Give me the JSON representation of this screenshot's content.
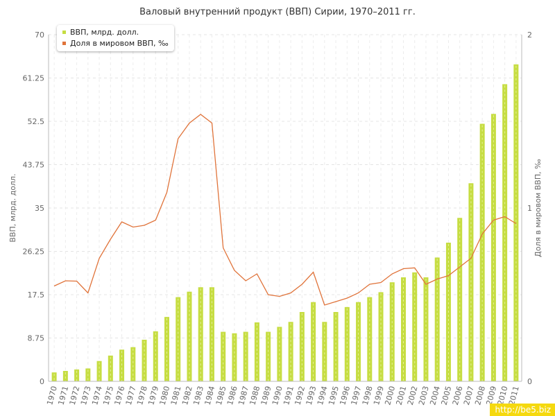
{
  "chart_data": {
    "type": "bar",
    "title": "Валовый внутренний продукт (ВВП) Сирии, 1970–2011 гг.",
    "ylabel": "ВВП, млрд. долл.",
    "y2label": "Доля в мировом ВВП, ‰",
    "ylim": [
      0,
      70
    ],
    "y2lim": [
      0,
      2
    ],
    "yticks": [
      "0",
      "8.75",
      "17.5",
      "26.25",
      "35",
      "43.75",
      "52.5",
      "61.25",
      "70"
    ],
    "y2ticks": [
      "0",
      "1",
      "2"
    ],
    "grid": true,
    "legend_position": "top-left",
    "categories": [
      "1970",
      "1971",
      "1972",
      "1973",
      "1974",
      "1975",
      "1976",
      "1977",
      "1978",
      "1979",
      "1980",
      "1981",
      "1982",
      "1983",
      "1984",
      "1985",
      "1986",
      "1987",
      "1988",
      "1989",
      "1990",
      "1991",
      "1992",
      "1993",
      "1994",
      "1995",
      "1996",
      "1997",
      "1998",
      "1999",
      "2000",
      "2001",
      "2002",
      "2003",
      "2004",
      "2005",
      "2006",
      "2007",
      "2008",
      "2009",
      "2010",
      "2011"
    ],
    "series": [
      {
        "name": "ВВП, млрд. долл.",
        "type": "bar",
        "axis": "left",
        "color": "#c6dd42",
        "values": [
          1.8,
          2.1,
          2.4,
          2.6,
          4.1,
          5.2,
          6.4,
          6.9,
          8.4,
          10.1,
          13.0,
          17.0,
          18.1,
          19.0,
          19.0,
          10.0,
          9.7,
          10.0,
          11.9,
          10.0,
          11.0,
          12.0,
          14.0,
          16.0,
          12.0,
          14.0,
          15.0,
          16.0,
          17.0,
          18.0,
          20.0,
          21.0,
          22.0,
          21.0,
          25.0,
          28.0,
          33.0,
          40.0,
          52.0,
          54.0,
          60.0,
          64.0
        ]
      },
      {
        "name": "Доля в мировом ВВП, ‰",
        "type": "line",
        "axis": "right",
        "color": "#e0733a",
        "values": [
          0.55,
          0.58,
          0.578,
          0.51,
          0.71,
          0.82,
          0.92,
          0.89,
          0.9,
          0.93,
          1.09,
          1.4,
          1.49,
          1.54,
          1.49,
          0.77,
          0.64,
          0.58,
          0.62,
          0.5,
          0.49,
          0.51,
          0.56,
          0.63,
          0.44,
          0.46,
          0.48,
          0.51,
          0.56,
          0.57,
          0.62,
          0.65,
          0.655,
          0.56,
          0.59,
          0.61,
          0.66,
          0.71,
          0.85,
          0.93,
          0.95,
          0.91
        ]
      }
    ]
  },
  "legend": {
    "item0": "ВВП, млрд. долл.",
    "item1": "Доля в мировом ВВП, ‰"
  },
  "watermark": "http://be5.biz"
}
